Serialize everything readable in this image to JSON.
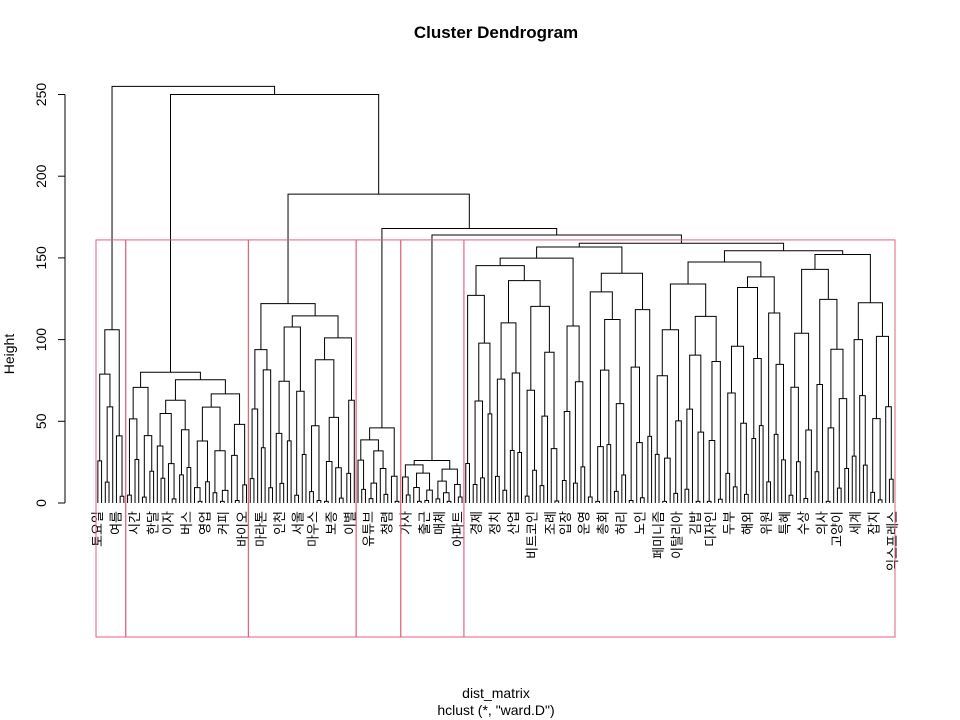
{
  "chart_data": {
    "type": "dendrogram",
    "title": "Cluster Dendrogram",
    "ylabel": "Height",
    "xlabel": "dist_matrix",
    "subtitle": "hclust (*, \"ward.D\")",
    "ylim": [
      0,
      265
    ],
    "yticks": [
      0,
      50,
      100,
      150,
      200,
      250
    ],
    "cut_height": 161,
    "cluster_rect_color": "#e0607e",
    "cluster_count": 6,
    "leaf_count": 215,
    "leaf_labels": [
      "토요일",
      "여름",
      "시간",
      "한달",
      "이자",
      "버스",
      "영업",
      "커피",
      "바이오",
      "마라톤",
      "인천",
      "서울",
      "마우스",
      "보증",
      "이별",
      "유튜브",
      "청렴",
      "가사",
      "출근",
      "매체",
      "아파트",
      "경제",
      "정치",
      "산업",
      "비트코인",
      "조례",
      "입장",
      "운영",
      "총회",
      "허리",
      "노인",
      "페미니즘",
      "이탈리아",
      "김밥",
      "디자인",
      "두부",
      "해외",
      "위원",
      "특혜",
      "수상",
      "의사",
      "고양이",
      "세계",
      "잡지",
      "익스프레스"
    ],
    "top_merges": [
      255,
      250,
      189,
      168,
      164,
      159
    ]
  }
}
